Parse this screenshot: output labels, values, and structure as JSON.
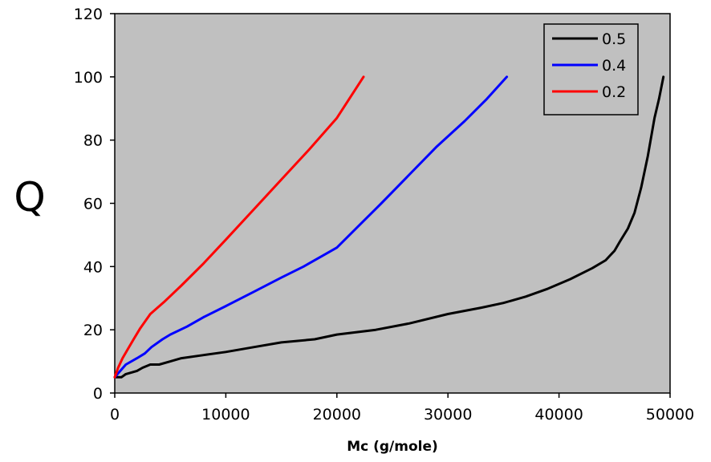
{
  "chart_data": {
    "type": "line",
    "title": "",
    "xlabel": "Mc (g/mole)",
    "ylabel": "Q",
    "xlim": [
      0,
      50000
    ],
    "ylim": [
      0,
      120
    ],
    "x_ticks": [
      0,
      10000,
      20000,
      30000,
      40000,
      50000
    ],
    "y_ticks": [
      0,
      20,
      40,
      60,
      80,
      100,
      120
    ],
    "grid": false,
    "plot_background": "#c0c0c0",
    "legend_position": "top-right",
    "series": [
      {
        "name": "0.5",
        "color": "#000000",
        "points": [
          [
            0,
            5
          ],
          [
            600,
            5
          ],
          [
            1000,
            6
          ],
          [
            1500,
            6.5
          ],
          [
            2000,
            7
          ],
          [
            2500,
            8
          ],
          [
            3200,
            9
          ],
          [
            4000,
            9
          ],
          [
            5000,
            10
          ],
          [
            6000,
            11
          ],
          [
            8000,
            12
          ],
          [
            10000,
            13
          ],
          [
            12500,
            14.5
          ],
          [
            15000,
            16
          ],
          [
            18000,
            17
          ],
          [
            20000,
            18.5
          ],
          [
            23500,
            20
          ],
          [
            26500,
            22
          ],
          [
            30000,
            25
          ],
          [
            33000,
            27
          ],
          [
            35000,
            28.5
          ],
          [
            37000,
            30.5
          ],
          [
            39000,
            33
          ],
          [
            41000,
            36
          ],
          [
            43000,
            39.5
          ],
          [
            44200,
            42
          ],
          [
            45000,
            45
          ],
          [
            45500,
            48
          ],
          [
            46200,
            52
          ],
          [
            46800,
            57
          ],
          [
            47400,
            65
          ],
          [
            48000,
            75
          ],
          [
            48600,
            87
          ],
          [
            49000,
            93
          ],
          [
            49400,
            100
          ]
        ]
      },
      {
        "name": "0.4",
        "color": "#0000ff",
        "points": [
          [
            0,
            5
          ],
          [
            500,
            7
          ],
          [
            1000,
            9
          ],
          [
            2000,
            11
          ],
          [
            2700,
            12.5
          ],
          [
            3300,
            14.5
          ],
          [
            4300,
            17
          ],
          [
            5000,
            18.5
          ],
          [
            6500,
            21
          ],
          [
            8000,
            24
          ],
          [
            10000,
            27.5
          ],
          [
            12500,
            32
          ],
          [
            15000,
            36.5
          ],
          [
            17000,
            40
          ],
          [
            19000,
            44
          ],
          [
            20000,
            46
          ],
          [
            22000,
            53
          ],
          [
            24000,
            60
          ],
          [
            26500,
            69
          ],
          [
            29000,
            78
          ],
          [
            31500,
            86
          ],
          [
            33500,
            93
          ],
          [
            35300,
            100
          ]
        ]
      },
      {
        "name": "0.2",
        "color": "#ff0000",
        "points": [
          [
            0,
            5
          ],
          [
            300,
            8
          ],
          [
            700,
            11
          ],
          [
            1200,
            14
          ],
          [
            1700,
            17
          ],
          [
            2300,
            20.5
          ],
          [
            3200,
            25
          ],
          [
            4500,
            29
          ],
          [
            6000,
            34
          ],
          [
            8000,
            41
          ],
          [
            10000,
            48.5
          ],
          [
            12500,
            58
          ],
          [
            15000,
            67.5
          ],
          [
            17500,
            77
          ],
          [
            20000,
            87
          ],
          [
            22400,
            100
          ]
        ]
      }
    ]
  }
}
